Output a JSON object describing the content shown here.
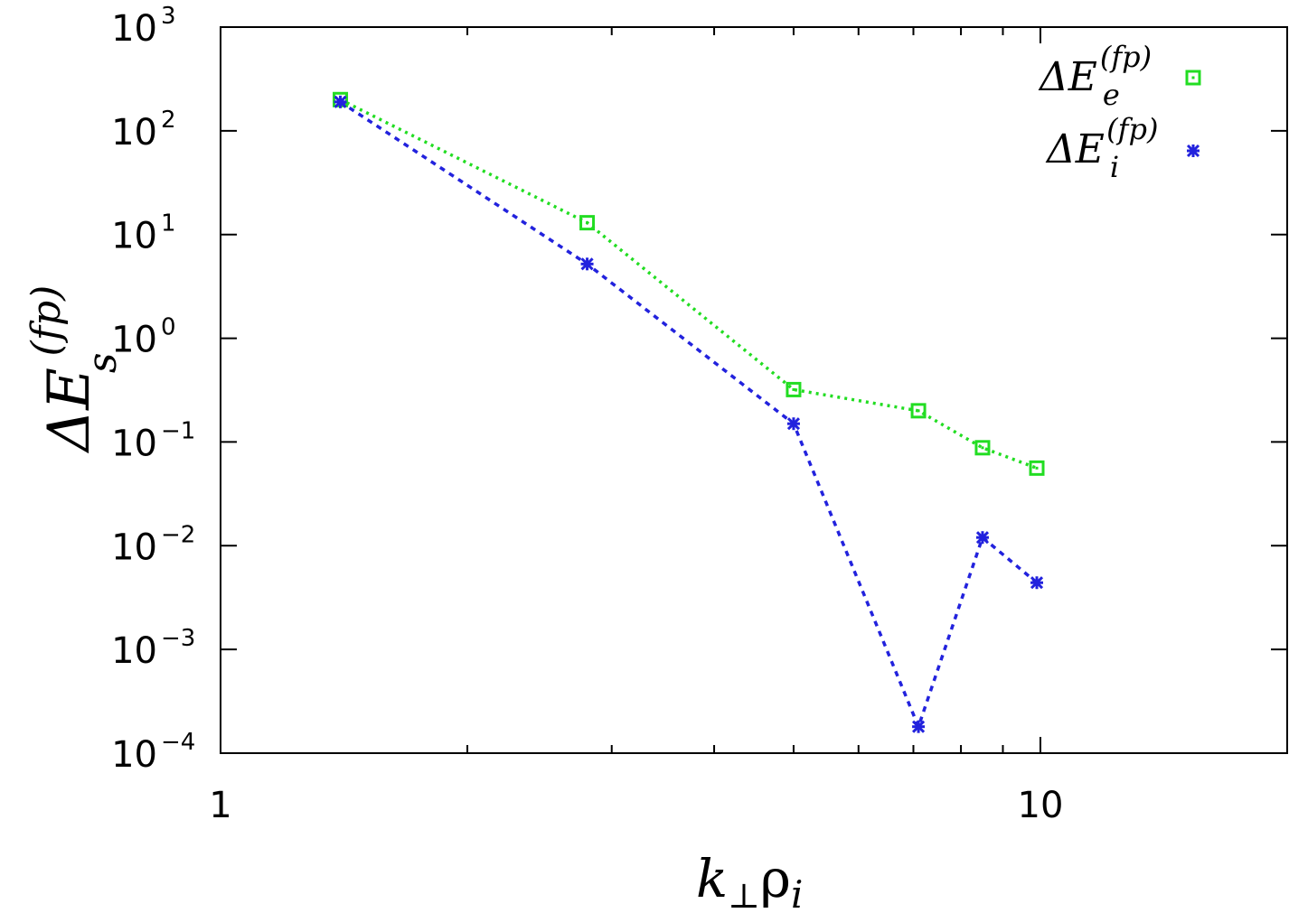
{
  "chart_data": {
    "type": "line",
    "x_scale": "log",
    "y_scale": "log",
    "xlim": [
      1,
      20
    ],
    "ylim": [
      0.0001,
      1000
    ],
    "grid": false,
    "legend_position": "top-right",
    "xlabel": {
      "main": "k",
      "sub": "⊥",
      "rho": "ρ",
      "rho_sub": "i"
    },
    "ylabel": {
      "main": "ΔE",
      "sub": "s",
      "sup": "(fp)"
    },
    "x_ticks": [
      {
        "value": 1,
        "label": "1"
      },
      {
        "value": 10,
        "label": "10"
      }
    ],
    "x_minor_ticks": [
      2,
      3,
      4,
      5,
      6,
      7,
      8,
      9,
      20
    ],
    "y_ticks": [
      {
        "value": 1000,
        "base": "10",
        "exp": "3"
      },
      {
        "value": 100,
        "base": "10",
        "exp": "2"
      },
      {
        "value": 10,
        "base": "10",
        "exp": "1"
      },
      {
        "value": 1,
        "base": "10",
        "exp": "0"
      },
      {
        "value": 0.1,
        "base": "10",
        "exp": "−1"
      },
      {
        "value": 0.01,
        "base": "10",
        "exp": "−2"
      },
      {
        "value": 0.001,
        "base": "10",
        "exp": "−3"
      },
      {
        "value": 0.0001,
        "base": "10",
        "exp": "−4"
      }
    ],
    "series": [
      {
        "id": "electrons",
        "label_main": "ΔE",
        "label_sub": "e",
        "label_sup": "(fp)",
        "color": "#22dd22",
        "marker": "square",
        "dash": "3,5",
        "x": [
          1.4,
          2.8,
          5.0,
          7.1,
          8.5,
          9.9
        ],
        "y": [
          200,
          13,
          0.32,
          0.2,
          0.088,
          0.056
        ]
      },
      {
        "id": "ions",
        "label_main": "ΔE",
        "label_sub": "i",
        "label_sup": "(fp)",
        "color": "#2222dd",
        "marker": "star",
        "dash": "6,6",
        "x": [
          1.4,
          2.8,
          5.0,
          7.1,
          8.5,
          9.9
        ],
        "y": [
          190,
          5.2,
          0.15,
          0.00018,
          0.012,
          0.0044
        ]
      }
    ]
  }
}
